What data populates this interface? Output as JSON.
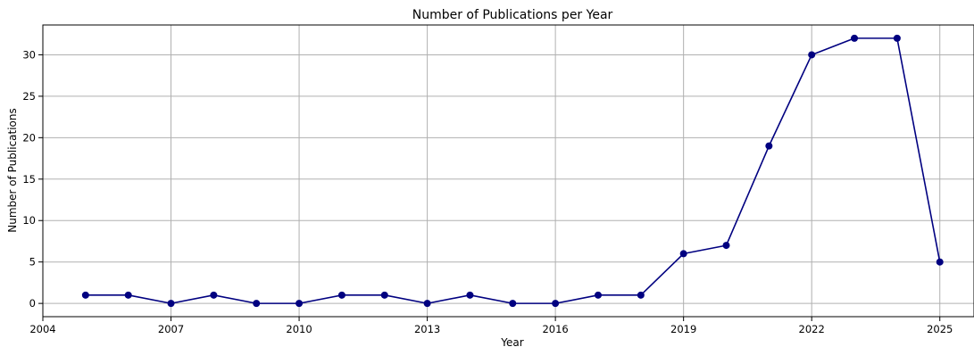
{
  "chart_data": {
    "type": "line",
    "title": "Number of Publications per Year",
    "xlabel": "Year",
    "ylabel": "Number of Publications",
    "x": [
      2005,
      2006,
      2007,
      2008,
      2009,
      2010,
      2011,
      2012,
      2013,
      2014,
      2015,
      2016,
      2017,
      2018,
      2019,
      2020,
      2021,
      2022,
      2023,
      2024,
      2025
    ],
    "series": [
      {
        "values": [
          1,
          1,
          0,
          1,
          0,
          0,
          1,
          1,
          0,
          1,
          0,
          0,
          1,
          1,
          6,
          7,
          19,
          30,
          32,
          32,
          5
        ],
        "color": "#000080",
        "marker": "circle"
      }
    ],
    "xlim": [
      2004,
      2025.8
    ],
    "ylim": [
      -1.6,
      33.6
    ],
    "xticks": [
      2004,
      2007,
      2010,
      2013,
      2016,
      2019,
      2022,
      2025
    ],
    "yticks": [
      0,
      5,
      10,
      15,
      20,
      25,
      30
    ],
    "grid": true,
    "line_color": "#000080",
    "grid_color": "#b0b0b0"
  }
}
